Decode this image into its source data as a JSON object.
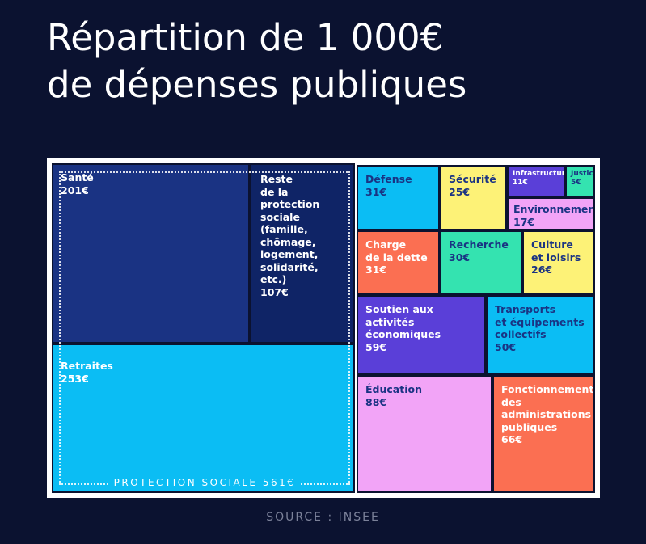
{
  "title_line1": "Répartition de 1 000€",
  "title_line2": "de dépenses publiques",
  "source": "SOURCE : INSEE",
  "group_label": "PROTECTION SOCIALE 561€",
  "colors": {
    "background": "#0b1230",
    "dark_blue": "#1a3383",
    "navy": "#0f2466",
    "cyan": "#0bbdf4",
    "yellow": "#fdf277",
    "purple": "#5a3fd8",
    "light_purple": "#f2a4f7",
    "mint": "#34e3b0",
    "orange": "#fb6f52"
  },
  "chart_data": {
    "type": "treemap",
    "title": "Répartition de 1 000€ de dépenses publiques",
    "unit": "€",
    "total": 1000,
    "groups": [
      {
        "name": "PROTECTION SOCIALE",
        "value": 561,
        "children": [
          "Santé",
          "Reste de la protection sociale (famille, chômage, logement, solidarité, etc.)",
          "Retraites"
        ]
      }
    ],
    "items": [
      {
        "label": "Santé",
        "value_text": "201€",
        "value": 201
      },
      {
        "label": "Reste\nde la protection\nsociale (famille,\nchômage,\nlogement,\nsolidarité, etc.)",
        "value_text": "107€",
        "value": 107
      },
      {
        "label": "Retraites",
        "value_text": "253€",
        "value": 253
      },
      {
        "label": "Défense",
        "value_text": "31€",
        "value": 31
      },
      {
        "label": "Sécurité",
        "value_text": "25€",
        "value": 25
      },
      {
        "label": "Infrastructures",
        "value_text": "11€",
        "value": 11
      },
      {
        "label": "Justice",
        "value_text": "5€",
        "value": 5
      },
      {
        "label": "Environnement",
        "value_text": "17€",
        "value": 17
      },
      {
        "label": "Charge\nde la dette",
        "value_text": "31€",
        "value": 31
      },
      {
        "label": "Recherche",
        "value_text": "30€",
        "value": 30
      },
      {
        "label": "Culture\net loisirs",
        "value_text": "26€",
        "value": 26
      },
      {
        "label": "Soutien aux activités\néconomiques",
        "value_text": "59€",
        "value": 59
      },
      {
        "label": "Transports\net équipements\ncollectifs",
        "value_text": "50€",
        "value": 50
      },
      {
        "label": "Éducation",
        "value_text": "88€",
        "value": 88
      },
      {
        "label": "Fonctionnement\ndes\nadministrations\npubliques",
        "value_text": "66€",
        "value": 66
      }
    ]
  }
}
